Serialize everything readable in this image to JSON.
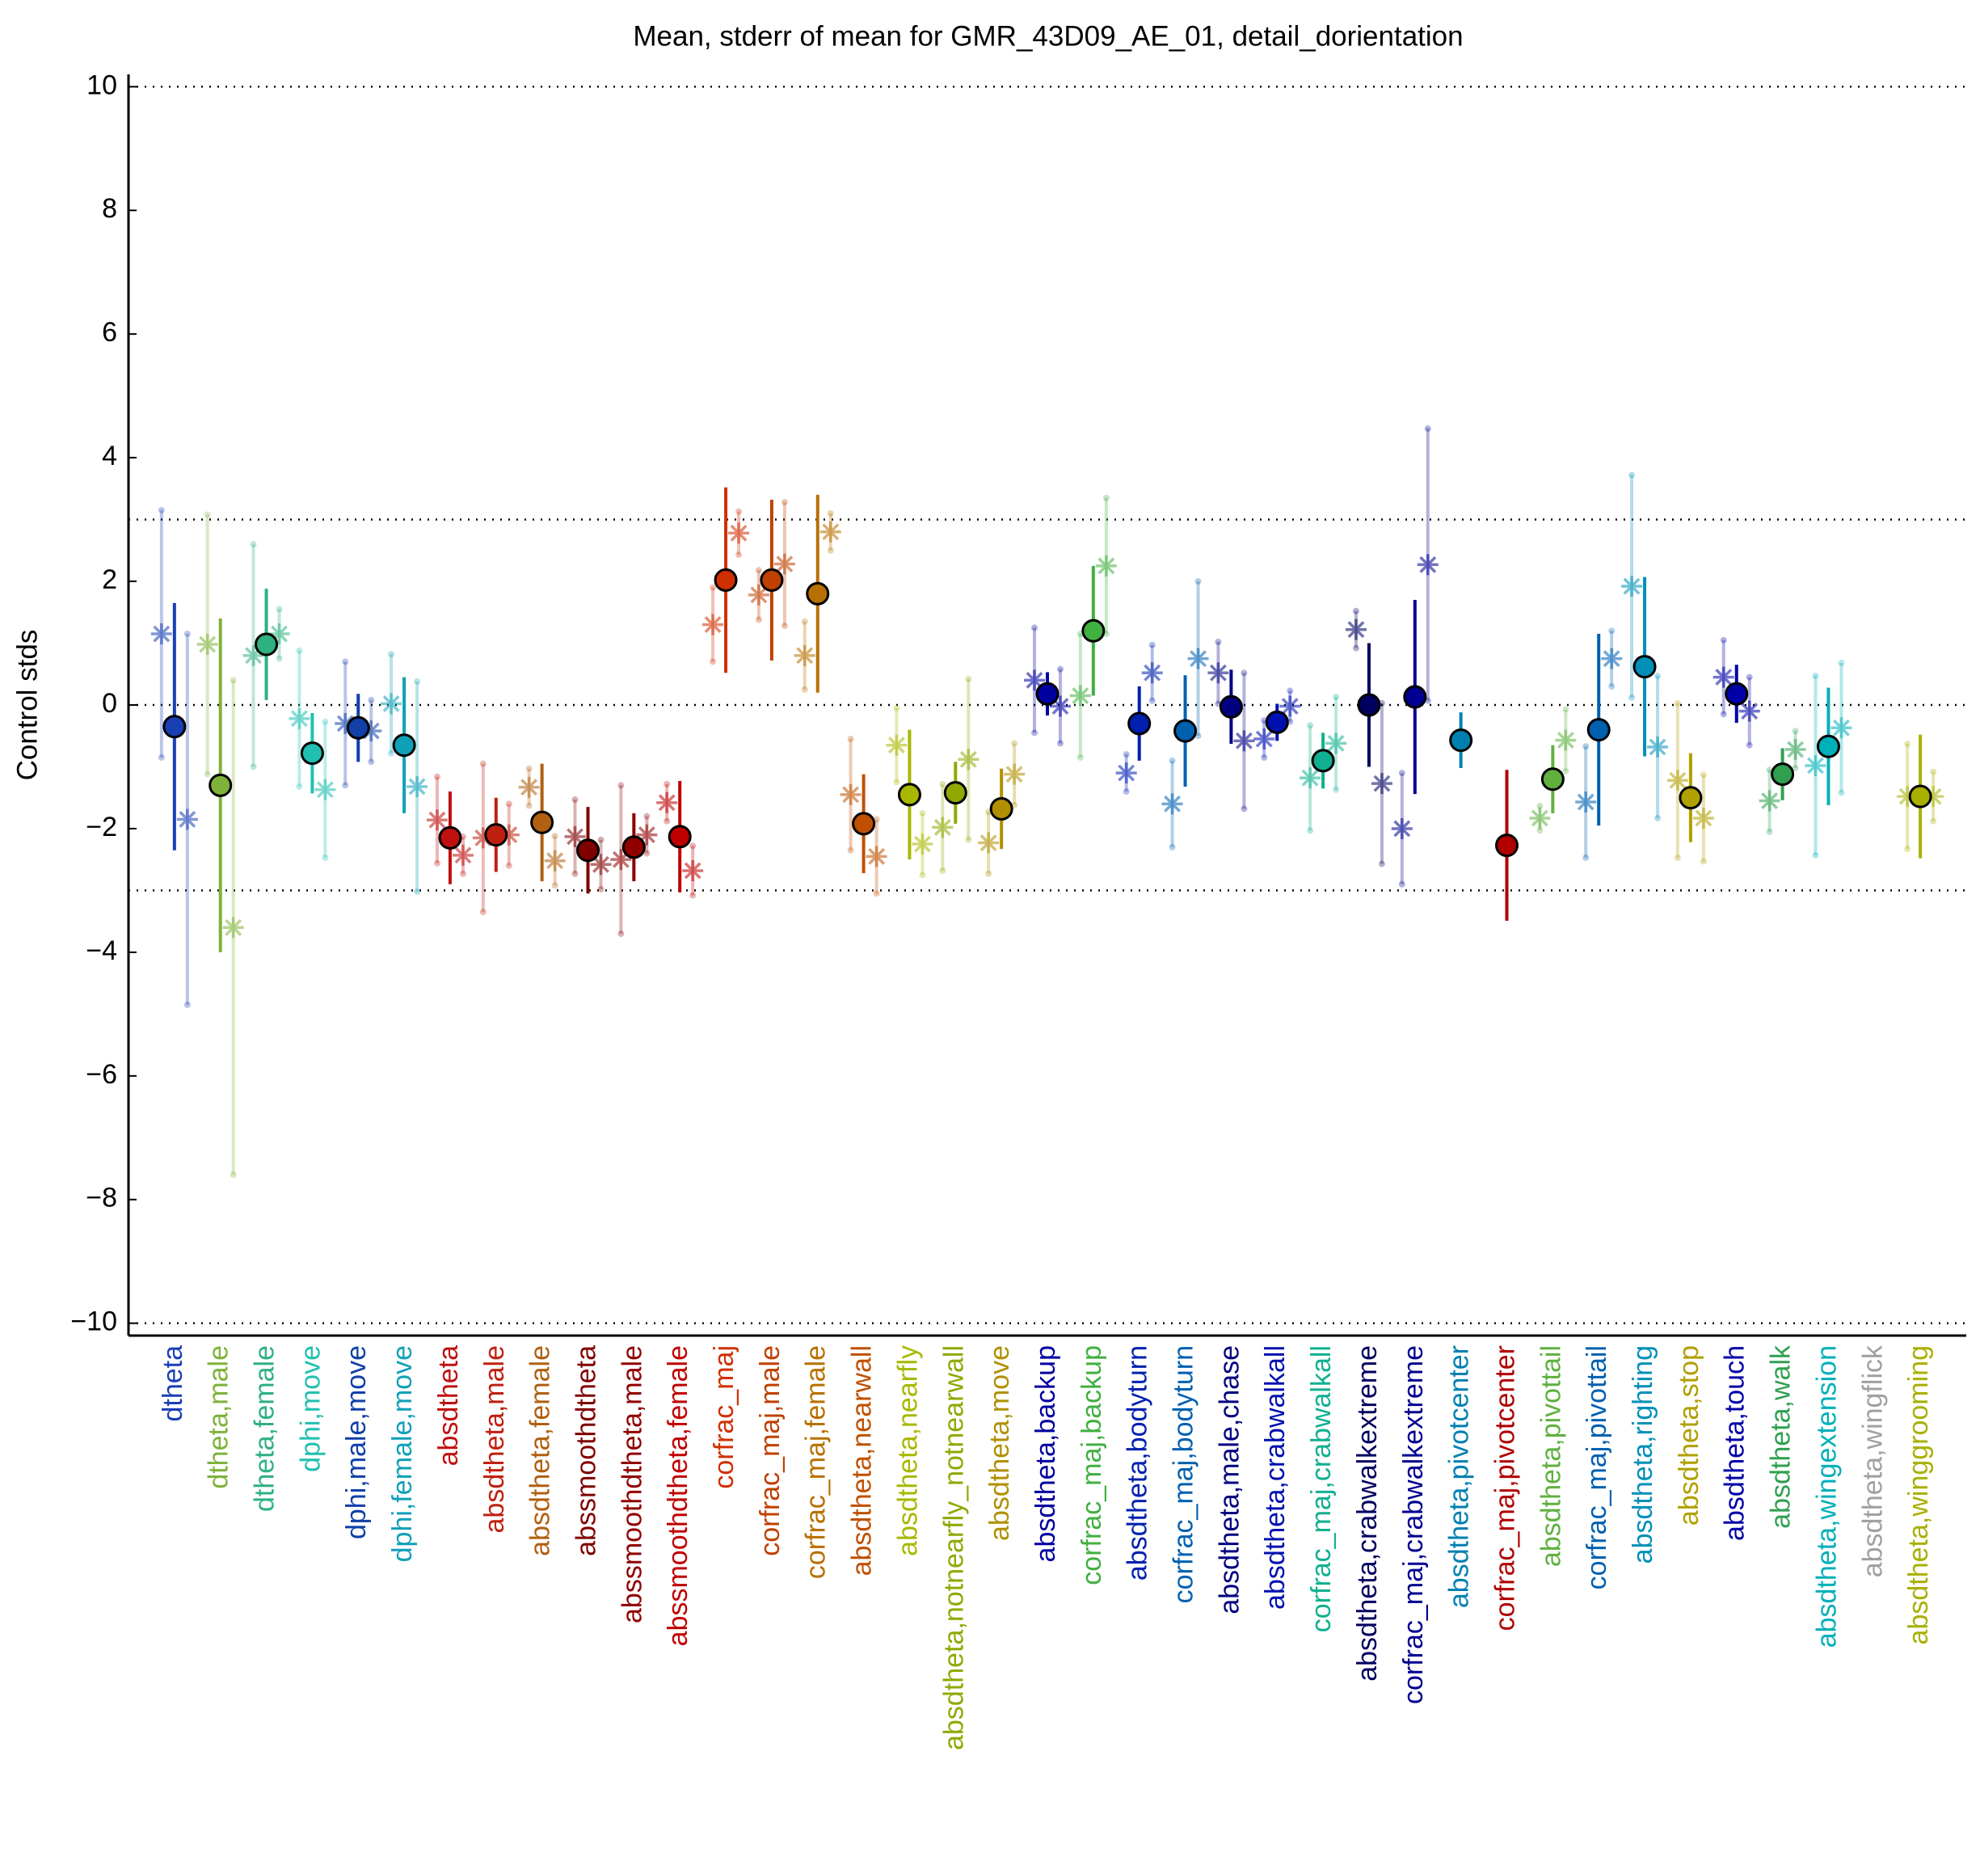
{
  "chart_data": {
    "type": "errorbar",
    "title": "Mean, stderr of mean for GMR_43D09_AE_01, detail_dorientation",
    "y_label": "Control stds",
    "categories": [
      "dtheta",
      "dtheta,male",
      "dtheta,female",
      "dphi,move",
      "dphi,male,move",
      "dphi,female,move",
      "absdtheta",
      "absdtheta,male",
      "absdtheta,female",
      "abssmoothdtheta",
      "abssmoothdtheta,male",
      "abssmoothdtheta,female",
      "corfrac_maj",
      "corfrac_maj,male",
      "corfrac_maj,female",
      "absdtheta,nearwall",
      "absdtheta,nearfly",
      "absdtheta,notnearfly_notnearwall",
      "absdtheta,move",
      "absdtheta,backup",
      "corfrac_maj,backup",
      "absdtheta,bodyturn",
      "corfrac_maj,bodyturn",
      "absdtheta,male,chase",
      "absdtheta,crabwalkall",
      "corfrac_maj,crabwalkall",
      "absdtheta,crabwalkextreme",
      "corfrac_maj,crabwalkextreme",
      "absdtheta,pivotcenter",
      "corfrac_maj,pivotcenter",
      "absdtheta,pivottail",
      "corfrac_maj,pivottail",
      "absdtheta,righting",
      "absdtheta,stop",
      "absdtheta,touch",
      "absdtheta,walk",
      "absdtheta,wingextension",
      "absdtheta,wingflick",
      "absdtheta,winggrooming"
    ],
    "colors": [
      "#1a3fb5",
      "#7fb23a",
      "#2fb080",
      "#20c0b0",
      "#1040a8",
      "#10a0b8",
      "#c01010",
      "#c02010",
      "#b06010",
      "#800000",
      "#900000",
      "#c00000",
      "#d03000",
      "#c04000",
      "#b87000",
      "#c05000",
      "#a8b800",
      "#90a800",
      "#b09000",
      "#0000a0",
      "#40b040",
      "#0020b0",
      "#0060b0",
      "#000080",
      "#0010b0",
      "#10b090",
      "#000060",
      "#000090",
      "#0080b0",
      "#b00000",
      "#60b040",
      "#0060b0",
      "#0090b8",
      "#b0a000",
      "#0000a8",
      "#30a050",
      "#00b0b8",
      "#a0a0a0",
      "#a8b000"
    ],
    "values": [
      -0.35,
      -1.3,
      0.98,
      -0.78,
      -0.37,
      -0.65,
      -2.15,
      -2.1,
      -1.9,
      -2.35,
      -2.3,
      -2.13,
      2.02,
      2.02,
      1.8,
      -1.92,
      -1.45,
      -1.42,
      -1.68,
      0.18,
      1.2,
      -0.3,
      -0.42,
      -0.03,
      -0.28,
      -0.9,
      0.0,
      0.13,
      -0.57,
      -2.27,
      -1.2,
      -0.4,
      0.62,
      -1.5,
      0.18,
      -1.12,
      -0.67,
      null,
      -1.48
    ],
    "errors": [
      2.0,
      2.7,
      0.9,
      0.65,
      0.55,
      1.1,
      0.75,
      0.6,
      0.95,
      0.7,
      0.55,
      0.9,
      1.5,
      1.3,
      1.6,
      0.8,
      1.05,
      0.5,
      0.65,
      0.35,
      1.05,
      0.6,
      0.9,
      0.6,
      0.3,
      0.45,
      1.0,
      1.57,
      0.45,
      1.22,
      0.55,
      1.55,
      1.45,
      0.72,
      0.47,
      0.42,
      0.95,
      null,
      1.0
    ],
    "left_values": [
      1.15,
      0.98,
      0.8,
      -0.22,
      -0.3,
      0.02,
      -1.86,
      -2.15,
      -1.33,
      -2.13,
      -2.5,
      -1.58,
      1.3,
      1.78,
      0.8,
      -1.45,
      -0.65,
      -1.98,
      -2.23,
      0.4,
      0.15,
      -1.1,
      -1.6,
      0.52,
      -0.55,
      -1.18,
      1.22,
      -2.0,
      null,
      null,
      -1.83,
      -1.57,
      1.92,
      -1.22,
      0.45,
      -1.55,
      -0.98,
      null,
      -1.48
    ],
    "left_errors": [
      2.0,
      2.1,
      1.8,
      1.1,
      1.0,
      0.8,
      0.7,
      1.2,
      0.3,
      0.6,
      1.2,
      0.3,
      0.6,
      0.4,
      0.55,
      0.9,
      0.6,
      0.7,
      0.5,
      0.85,
      1.0,
      0.3,
      0.7,
      0.5,
      0.3,
      0.85,
      0.3,
      0.9,
      null,
      null,
      0.2,
      0.9,
      1.8,
      1.25,
      0.6,
      0.5,
      1.45,
      null,
      0.85
    ],
    "right_values": [
      -1.85,
      -3.6,
      1.15,
      -1.37,
      -0.42,
      -1.32,
      -2.43,
      -2.1,
      -2.52,
      -2.58,
      -2.1,
      -2.68,
      2.78,
      2.28,
      2.8,
      -2.45,
      -2.25,
      -0.88,
      -1.12,
      -0.02,
      2.25,
      0.52,
      0.75,
      -0.58,
      -0.02,
      -0.62,
      -1.27,
      2.27,
      null,
      null,
      -0.57,
      0.75,
      -0.68,
      -1.83,
      -0.1,
      -0.72,
      -0.37,
      null,
      -1.48
    ],
    "right_errors": [
      3.0,
      4.0,
      0.4,
      1.1,
      0.5,
      1.7,
      0.3,
      0.5,
      0.4,
      0.4,
      0.3,
      0.4,
      0.35,
      1.0,
      0.3,
      0.6,
      0.5,
      1.3,
      0.5,
      0.6,
      1.1,
      0.45,
      1.25,
      1.1,
      0.25,
      0.75,
      1.3,
      2.2,
      null,
      null,
      0.5,
      0.45,
      1.15,
      0.7,
      0.55,
      0.3,
      1.05,
      null,
      0.4
    ],
    "ylim": [
      -10.2,
      10.2
    ],
    "yticks": [
      {
        "value": -10,
        "label": "−10"
      },
      {
        "value": -8,
        "label": "−8"
      },
      {
        "value": -6,
        "label": "−6"
      },
      {
        "value": -4,
        "label": "−4"
      },
      {
        "value": -2,
        "label": "−2"
      },
      0,
      2,
      4,
      6,
      8,
      10
    ],
    "reference_lines": [
      -10,
      -3,
      0,
      3,
      10
    ]
  }
}
